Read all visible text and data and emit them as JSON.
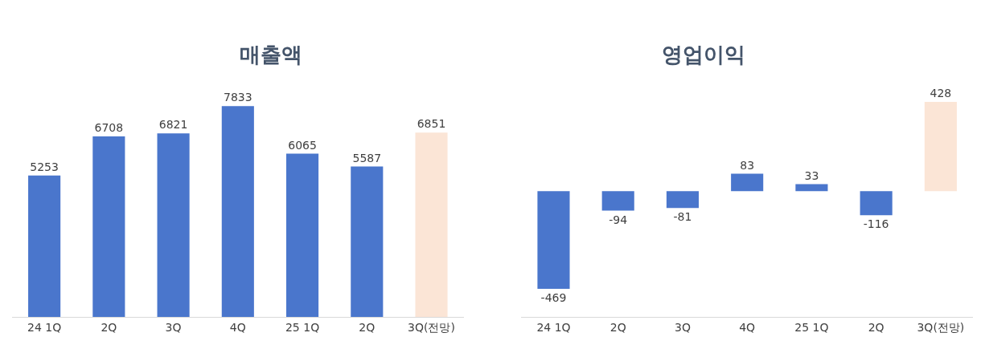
{
  "chart_data": [
    {
      "type": "bar",
      "title": "매출액",
      "categories": [
        "24 1Q",
        "2Q",
        "3Q",
        "4Q",
        "25 1Q",
        "2Q",
        "3Q(전망)"
      ],
      "values": [
        5253,
        6708,
        6821,
        7833,
        6065,
        5587,
        6851
      ],
      "colors": [
        "#4a76cc",
        "#4a76cc",
        "#4a76cc",
        "#4a76cc",
        "#4a76cc",
        "#4a76cc",
        "#fbe5d6"
      ],
      "data_labels": true
    },
    {
      "type": "bar",
      "title": "영업이익",
      "categories": [
        "24 1Q",
        "2Q",
        "3Q",
        "4Q",
        "25 1Q",
        "2Q",
        "3Q(전망)"
      ],
      "values": [
        -469,
        -94,
        -81,
        83,
        33,
        -116,
        428
      ],
      "colors": [
        "#4a76cc",
        "#4a76cc",
        "#4a76cc",
        "#4a76cc",
        "#4a76cc",
        "#4a76cc",
        "#fbe5d6"
      ],
      "data_labels": true
    }
  ]
}
